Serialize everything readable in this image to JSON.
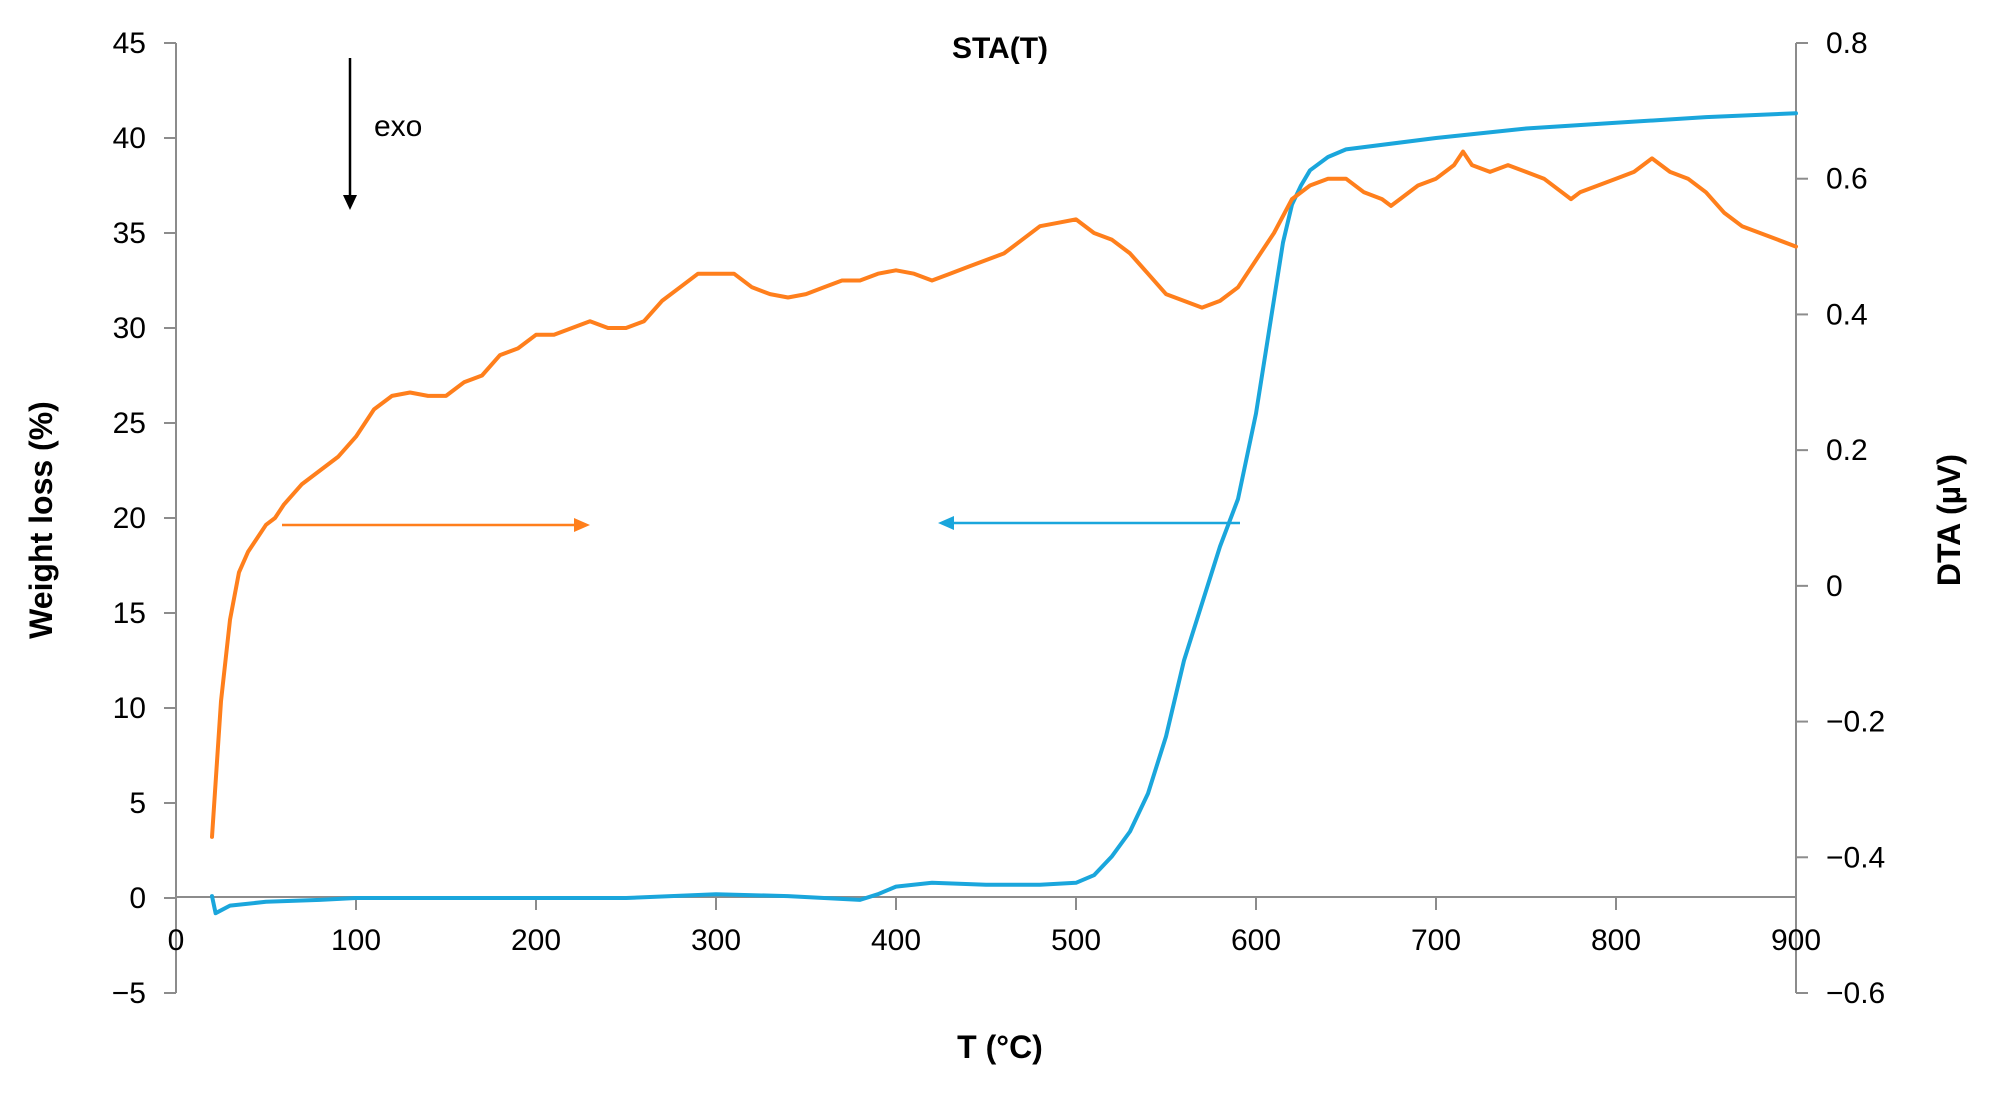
{
  "chart_data": {
    "type": "line",
    "title": "STA(T)",
    "xlabel": "T (°C)",
    "ylabel": "Weight loss (%)",
    "y2label": "DTA (µV)",
    "xlim": [
      0,
      900
    ],
    "ylim": [
      -5,
      45
    ],
    "y2lim": [
      -0.6,
      0.8
    ],
    "xticks": [
      0,
      100,
      200,
      300,
      400,
      500,
      600,
      700,
      800,
      900
    ],
    "yticks": [
      -5,
      0,
      5,
      10,
      15,
      20,
      25,
      30,
      35,
      40,
      45
    ],
    "y2ticks": [
      -0.6,
      -0.4,
      -0.2,
      0,
      0.2,
      0.4,
      0.6,
      0.8
    ],
    "xtick_labels": [
      "0",
      "100",
      "200",
      "300",
      "400",
      "500",
      "600",
      "700",
      "800",
      "900"
    ],
    "ytick_labels": [
      "−5",
      "0",
      "5",
      "10",
      "15",
      "20",
      "25",
      "30",
      "35",
      "40",
      "45"
    ],
    "y2tick_labels": [
      "−0.6",
      "−0.4",
      "−0.2",
      "0",
      "0.2",
      "0.4",
      "0.6",
      "0.8"
    ],
    "grid": false,
    "annotations": [
      {
        "text": "exo",
        "arrow": "down"
      }
    ],
    "series": [
      {
        "axis": "left",
        "color": "#1aa6dc",
        "arrow_direction": "left",
        "x": [
          20,
          22,
          30,
          50,
          80,
          100,
          150,
          200,
          250,
          300,
          340,
          380,
          390,
          400,
          420,
          450,
          480,
          500,
          510,
          520,
          530,
          540,
          550,
          560,
          570,
          580,
          590,
          600,
          610,
          615,
          620,
          625,
          630,
          640,
          650,
          700,
          750,
          800,
          850,
          900
        ],
        "y": [
          0.1,
          -0.8,
          -0.4,
          -0.2,
          -0.1,
          0.0,
          0.0,
          0.0,
          0.0,
          0.2,
          0.1,
          -0.1,
          0.2,
          0.6,
          0.8,
          0.7,
          0.7,
          0.8,
          1.2,
          2.2,
          3.5,
          5.5,
          8.5,
          12.5,
          15.5,
          18.5,
          21.0,
          25.5,
          31.5,
          34.5,
          36.5,
          37.5,
          38.3,
          39.0,
          39.4,
          40.0,
          40.5,
          40.8,
          41.1,
          41.3
        ]
      },
      {
        "axis": "right",
        "color": "#ff7f1c",
        "arrow_direction": "right",
        "x": [
          20,
          25,
          30,
          35,
          40,
          50,
          55,
          60,
          70,
          80,
          90,
          100,
          110,
          120,
          130,
          140,
          150,
          160,
          170,
          180,
          190,
          200,
          210,
          220,
          230,
          240,
          250,
          260,
          270,
          280,
          290,
          300,
          310,
          320,
          330,
          340,
          350,
          360,
          370,
          380,
          390,
          400,
          410,
          420,
          430,
          440,
          450,
          460,
          470,
          480,
          490,
          500,
          510,
          520,
          530,
          540,
          550,
          560,
          570,
          580,
          590,
          600,
          610,
          620,
          630,
          640,
          650,
          660,
          670,
          675,
          680,
          690,
          700,
          710,
          715,
          720,
          730,
          740,
          750,
          760,
          770,
          775,
          780,
          790,
          800,
          810,
          820,
          830,
          840,
          850,
          860,
          870,
          880,
          890,
          900
        ],
        "y": [
          -0.37,
          -0.17,
          -0.05,
          0.02,
          0.05,
          0.09,
          0.1,
          0.12,
          0.15,
          0.17,
          0.19,
          0.22,
          0.26,
          0.28,
          0.285,
          0.28,
          0.28,
          0.3,
          0.31,
          0.34,
          0.35,
          0.37,
          0.37,
          0.38,
          0.39,
          0.38,
          0.38,
          0.39,
          0.42,
          0.44,
          0.46,
          0.46,
          0.46,
          0.44,
          0.43,
          0.425,
          0.43,
          0.44,
          0.45,
          0.45,
          0.46,
          0.465,
          0.46,
          0.45,
          0.46,
          0.47,
          0.48,
          0.49,
          0.51,
          0.53,
          0.535,
          0.54,
          0.52,
          0.51,
          0.49,
          0.46,
          0.43,
          0.42,
          0.41,
          0.42,
          0.44,
          0.48,
          0.52,
          0.57,
          0.59,
          0.6,
          0.6,
          0.58,
          0.57,
          0.56,
          0.57,
          0.59,
          0.6,
          0.62,
          0.64,
          0.62,
          0.61,
          0.62,
          0.61,
          0.6,
          0.58,
          0.57,
          0.58,
          0.59,
          0.6,
          0.61,
          0.63,
          0.61,
          0.6,
          0.58,
          0.55,
          0.53,
          0.52,
          0.51,
          0.5
        ]
      }
    ]
  }
}
